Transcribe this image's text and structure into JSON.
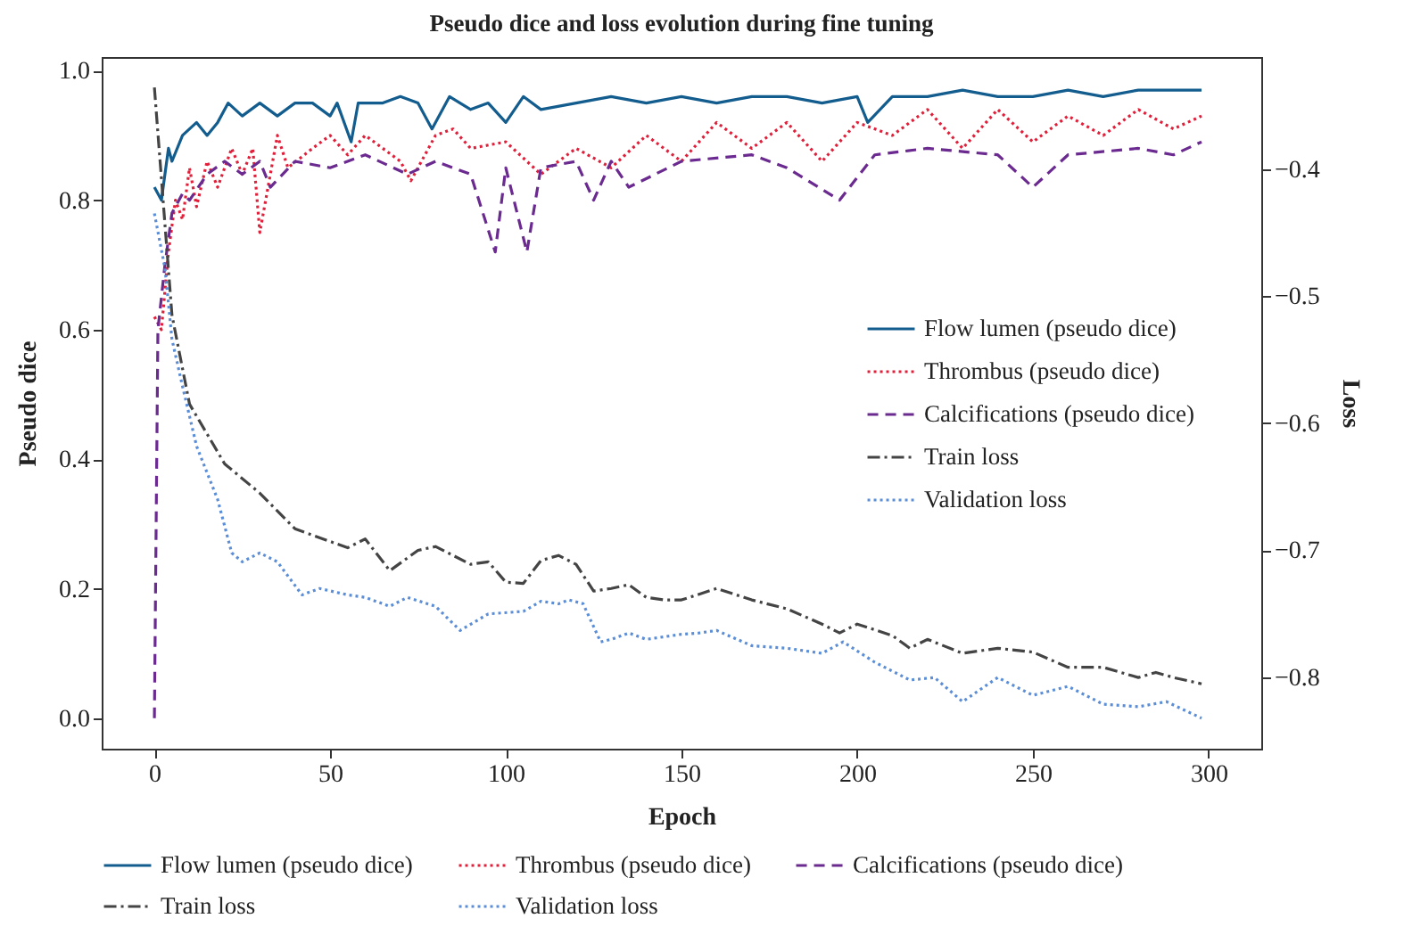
{
  "chart_data": {
    "type": "line",
    "title": "Pseudo dice and loss evolution during fine tuning",
    "xlabel": "Epoch",
    "ylabel": "Pseudo dice",
    "y2label": "Loss",
    "xlim": [
      -15,
      315
    ],
    "xticks": [
      0,
      50,
      100,
      150,
      200,
      250,
      300
    ],
    "ylim": [
      -0.047,
      1.021
    ],
    "yticks": [
      {
        "value": 0,
        "label": "0.0"
      },
      0.2,
      0.4,
      0.6,
      0.8,
      {
        "value": 1,
        "label": "1.0"
      }
    ],
    "y2lim": [
      -0.856,
      -0.312
    ],
    "y2ticks": [
      {
        "value": -0.8,
        "label": "−0.8"
      },
      {
        "value": -0.7,
        "label": "−0.7"
      },
      {
        "value": -0.6,
        "label": "−0.6"
      },
      {
        "value": -0.5,
        "label": "−0.5"
      },
      {
        "value": -0.4,
        "label": "−0.4"
      }
    ],
    "legend": "right",
    "grid": false,
    "series": [
      {
        "name": "Flow lumen (pseudo dice)",
        "color": "#135c8e",
        "line_style": "solid",
        "x": [
          0,
          2,
          4,
          5,
          8,
          12,
          15,
          18,
          21,
          25,
          30,
          35,
          40,
          45,
          50,
          52,
          56,
          58,
          65,
          70,
          75,
          79,
          84,
          90,
          95,
          100,
          105,
          110,
          120,
          130,
          140,
          150,
          160,
          170,
          180,
          190,
          200,
          203,
          210,
          220,
          230,
          240,
          250,
          260,
          270,
          280,
          290,
          298
        ],
        "values": [
          0.82,
          0.8,
          0.88,
          0.86,
          0.9,
          0.92,
          0.9,
          0.92,
          0.95,
          0.93,
          0.95,
          0.93,
          0.95,
          0.95,
          0.93,
          0.95,
          0.89,
          0.95,
          0.95,
          0.96,
          0.95,
          0.91,
          0.96,
          0.94,
          0.95,
          0.92,
          0.96,
          0.94,
          0.95,
          0.96,
          0.95,
          0.96,
          0.95,
          0.96,
          0.96,
          0.95,
          0.96,
          0.92,
          0.96,
          0.96,
          0.97,
          0.96,
          0.96,
          0.97,
          0.96,
          0.97,
          0.97,
          0.97
        ]
      },
      {
        "name": "Thrombus (pseudo dice)",
        "color": "#e0203a",
        "line_style": "dotted",
        "x": [
          0,
          2,
          4,
          6,
          8,
          10,
          12,
          15,
          18,
          22,
          25,
          28,
          30,
          35,
          38,
          45,
          50,
          55,
          60,
          70,
          73,
          80,
          85,
          90,
          100,
          110,
          120,
          130,
          140,
          150,
          160,
          170,
          180,
          190,
          200,
          210,
          220,
          230,
          240,
          250,
          260,
          270,
          280,
          290,
          298
        ],
        "values": [
          0.62,
          0.6,
          0.72,
          0.8,
          0.77,
          0.85,
          0.79,
          0.86,
          0.82,
          0.88,
          0.84,
          0.88,
          0.75,
          0.9,
          0.85,
          0.88,
          0.9,
          0.87,
          0.9,
          0.86,
          0.83,
          0.9,
          0.91,
          0.88,
          0.89,
          0.84,
          0.88,
          0.85,
          0.9,
          0.86,
          0.92,
          0.88,
          0.92,
          0.86,
          0.92,
          0.9,
          0.94,
          0.88,
          0.94,
          0.89,
          0.93,
          0.9,
          0.94,
          0.91,
          0.93
        ]
      },
      {
        "name": "Calcifications (pseudo dice)",
        "color": "#6a2a8f",
        "line_style": "dashed",
        "x": [
          0,
          1,
          3,
          5,
          8,
          10,
          15,
          20,
          25,
          30,
          33,
          40,
          50,
          60,
          72,
          80,
          90,
          97,
          100,
          106,
          110,
          120,
          125,
          130,
          135,
          150,
          170,
          180,
          195,
          205,
          220,
          240,
          250,
          260,
          280,
          290,
          298
        ],
        "values": [
          0.0,
          0.6,
          0.7,
          0.78,
          0.81,
          0.8,
          0.84,
          0.86,
          0.84,
          0.86,
          0.82,
          0.86,
          0.85,
          0.87,
          0.84,
          0.86,
          0.84,
          0.72,
          0.85,
          0.72,
          0.85,
          0.86,
          0.8,
          0.86,
          0.82,
          0.86,
          0.87,
          0.85,
          0.8,
          0.87,
          0.88,
          0.87,
          0.82,
          0.87,
          0.88,
          0.87,
          0.89
        ]
      },
      {
        "name": "Train loss",
        "color": "#444444",
        "line_style": "dashdot",
        "axis": "y2",
        "x": [
          0,
          5,
          10,
          20,
          30,
          40,
          50,
          55,
          60,
          67,
          75,
          80,
          90,
          95,
          100,
          105,
          110,
          115,
          120,
          125,
          130,
          135,
          140,
          145,
          150,
          160,
          170,
          180,
          190,
          195,
          200,
          210,
          215,
          220,
          230,
          235,
          240,
          250,
          260,
          270,
          280,
          285,
          290,
          298
        ],
        "values": [
          -0.336,
          -0.515,
          -0.585,
          -0.632,
          -0.655,
          -0.683,
          -0.693,
          -0.698,
          -0.691,
          -0.716,
          -0.7,
          -0.697,
          -0.711,
          -0.709,
          -0.725,
          -0.726,
          -0.708,
          -0.704,
          -0.711,
          -0.732,
          -0.73,
          -0.727,
          -0.737,
          -0.739,
          -0.739,
          -0.73,
          -0.739,
          -0.746,
          -0.758,
          -0.765,
          -0.758,
          -0.767,
          -0.777,
          -0.77,
          -0.781,
          -0.779,
          -0.777,
          -0.78,
          -0.792,
          -0.792,
          -0.8,
          -0.796,
          -0.8,
          -0.805
        ]
      },
      {
        "name": "Validation loss",
        "color": "#5b8ed6",
        "line_style": "dotted",
        "axis": "y2",
        "x": [
          0,
          3,
          5,
          8,
          12,
          18,
          22,
          25,
          30,
          35,
          42,
          47,
          55,
          60,
          67,
          72,
          80,
          87,
          95,
          105,
          110,
          115,
          118,
          122,
          127,
          130,
          135,
          140,
          150,
          155,
          160,
          170,
          180,
          190,
          196,
          205,
          215,
          222,
          230,
          240,
          250,
          260,
          270,
          280,
          288,
          298
        ],
        "values": [
          -0.435,
          -0.478,
          -0.534,
          -0.571,
          -0.618,
          -0.66,
          -0.702,
          -0.709,
          -0.702,
          -0.709,
          -0.735,
          -0.73,
          -0.735,
          -0.737,
          -0.744,
          -0.737,
          -0.744,
          -0.763,
          -0.75,
          -0.748,
          -0.74,
          -0.742,
          -0.739,
          -0.742,
          -0.772,
          -0.77,
          -0.765,
          -0.77,
          -0.766,
          -0.765,
          -0.763,
          -0.775,
          -0.777,
          -0.781,
          -0.772,
          -0.788,
          -0.802,
          -0.8,
          -0.819,
          -0.8,
          -0.814,
          -0.807,
          -0.821,
          -0.823,
          -0.819,
          -0.832
        ]
      }
    ]
  }
}
